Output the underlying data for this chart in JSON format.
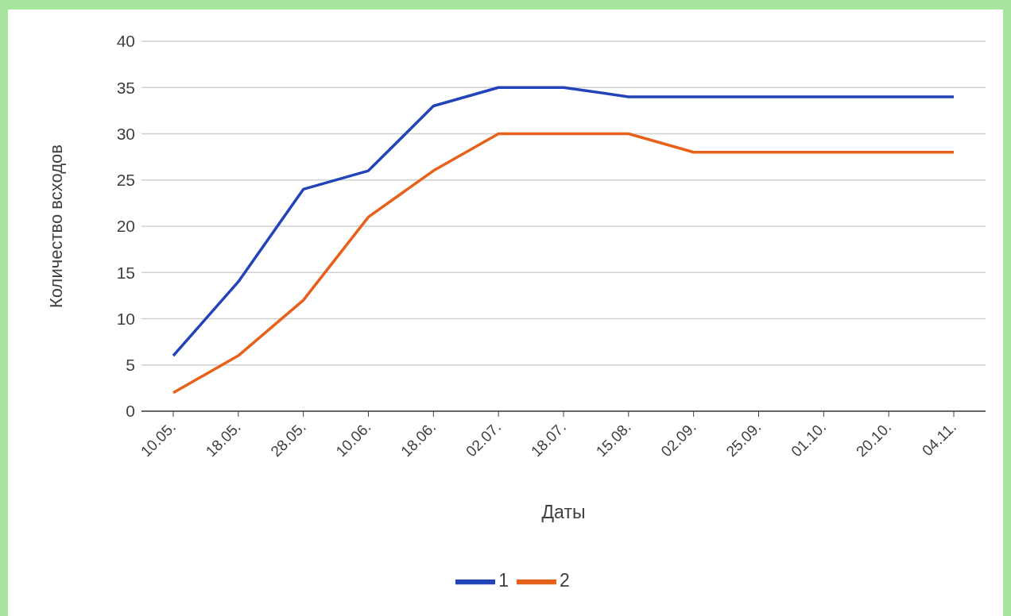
{
  "chart_data": {
    "type": "line",
    "xlabel": "Даты",
    "ylabel": "Количество всходов",
    "categories": [
      "10.05.",
      "18.05.",
      "28.05.",
      "10.06.",
      "18.06.",
      "02.07.",
      "18.07.",
      "15.08.",
      "02.09.",
      "25.09.",
      "01.10.",
      "20.10.",
      "04.11."
    ],
    "series": [
      {
        "name": "1",
        "color": "#2343b8",
        "values": [
          6,
          14,
          24,
          26,
          33,
          35,
          35,
          34,
          34,
          34,
          34,
          34,
          34
        ]
      },
      {
        "name": "2",
        "color": "#e8611a",
        "values": [
          2,
          6,
          12,
          21,
          26,
          30,
          30,
          30,
          28,
          28,
          28,
          28,
          28
        ]
      }
    ],
    "ylim": [
      0,
      40
    ],
    "yticks": [
      0,
      5,
      10,
      15,
      20,
      25,
      30,
      35,
      40
    ],
    "grid": "y",
    "legend": "bottom"
  }
}
